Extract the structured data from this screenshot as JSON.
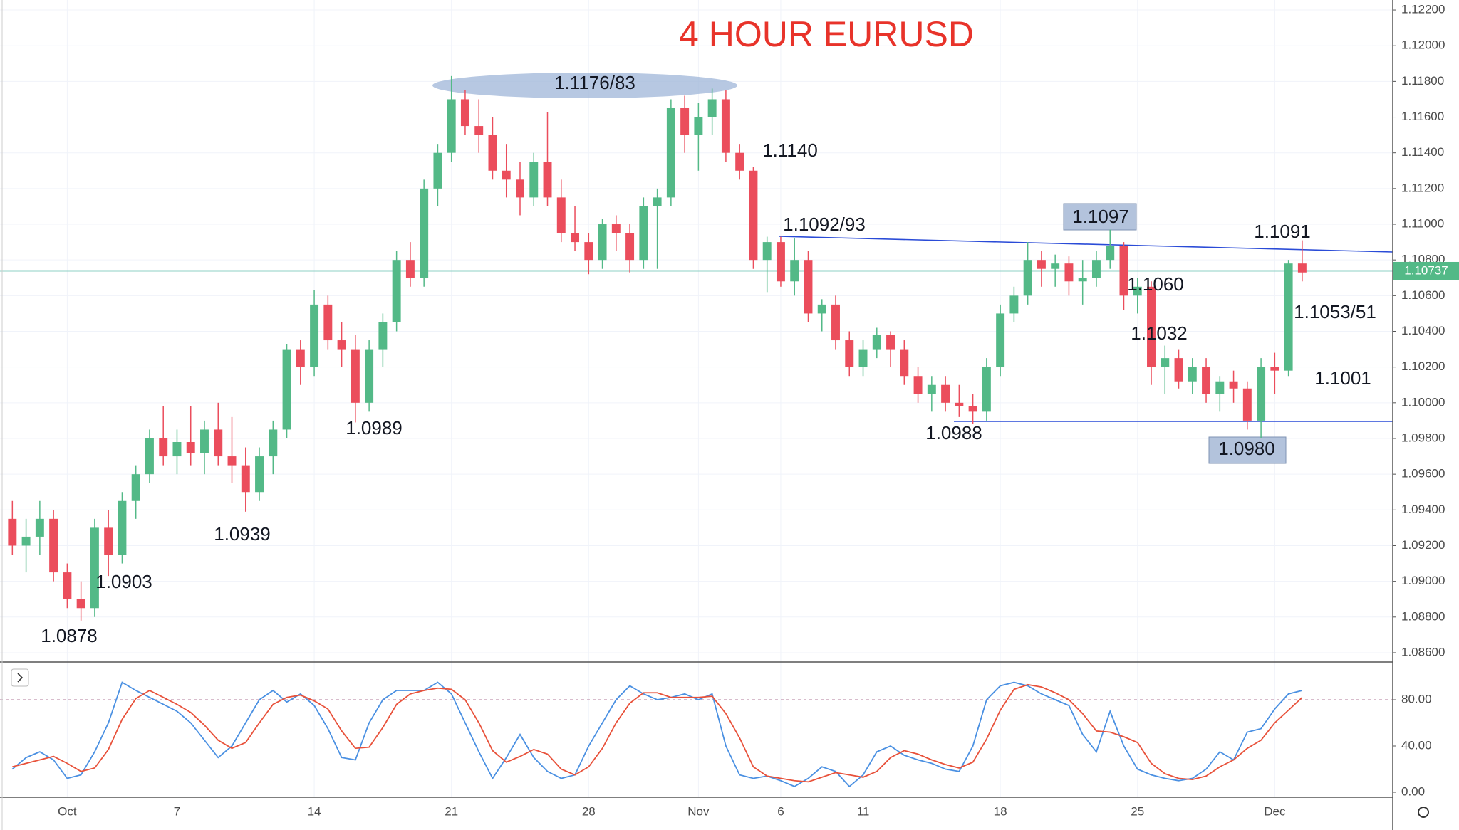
{
  "chart_data": [
    {
      "type": "candlestick",
      "title": "4 HOUR EURUSD",
      "up_color": "#53b987",
      "down_color": "#eb4d5c",
      "xlim": [
        -0.9,
        100.6
      ],
      "ylim": [
        1.08548,
        1.12256
      ],
      "yticks": [
        {
          "value": 1.122,
          "label": "1.12200"
        },
        {
          "value": 1.12,
          "label": "1.12000"
        },
        {
          "value": 1.118,
          "label": "1.11800"
        },
        {
          "value": 1.116,
          "label": "1.11600"
        },
        {
          "value": 1.114,
          "label": "1.11400"
        },
        {
          "value": 1.112,
          "label": "1.11200"
        },
        {
          "value": 1.11,
          "label": "1.11000"
        },
        {
          "value": 1.108,
          "label": "1.10800"
        },
        {
          "value": 1.106,
          "label": "1.10600"
        },
        {
          "value": 1.104,
          "label": "1.10400"
        },
        {
          "value": 1.102,
          "label": "1.10200"
        },
        {
          "value": 1.1,
          "label": "1.10000"
        },
        {
          "value": 1.098,
          "label": "1.09800"
        },
        {
          "value": 1.096,
          "label": "1.09600"
        },
        {
          "value": 1.094,
          "label": "1.09400"
        },
        {
          "value": 1.092,
          "label": "1.09200"
        },
        {
          "value": 1.09,
          "label": "1.09000"
        },
        {
          "value": 1.088,
          "label": "1.08800"
        },
        {
          "value": 1.086,
          "label": "1.08600"
        }
      ],
      "xticks": [
        {
          "value": 4,
          "label": "Oct"
        },
        {
          "value": 12,
          "label": "7"
        },
        {
          "value": 22,
          "label": "14"
        },
        {
          "value": 32,
          "label": "21"
        },
        {
          "value": 42,
          "label": "28"
        },
        {
          "value": 50,
          "label": "Nov"
        },
        {
          "value": 56,
          "label": "6"
        },
        {
          "value": 62,
          "label": "11"
        },
        {
          "value": 72,
          "label": "18"
        },
        {
          "value": 82,
          "label": "25"
        },
        {
          "value": 92,
          "label": "Dec"
        }
      ],
      "last_price": 1.10737,
      "annotations": [
        "1.1176/83",
        "1.1140",
        "1.1092/93",
        "1.1097",
        "1.1091",
        "1.1060",
        "1.1053/51",
        "1.1032",
        "1.1001",
        "1.0988",
        "1.0980",
        "1.0989",
        "1.0939",
        "1.0903",
        "1.0878"
      ],
      "ohlc": [
        [
          1.0935,
          1.0945,
          1.0915,
          1.092
        ],
        [
          1.092,
          1.0935,
          1.0905,
          1.0925
        ],
        [
          1.0925,
          1.0945,
          1.0915,
          1.0935
        ],
        [
          1.0935,
          1.094,
          1.09,
          1.0905
        ],
        [
          1.0905,
          1.091,
          1.0885,
          1.089
        ],
        [
          1.089,
          1.09,
          1.0878,
          1.0885
        ],
        [
          1.0885,
          1.0935,
          1.088,
          1.093
        ],
        [
          1.093,
          1.094,
          1.0903,
          1.0915
        ],
        [
          1.0915,
          1.095,
          1.091,
          1.0945
        ],
        [
          1.0945,
          1.0965,
          1.0935,
          1.096
        ],
        [
          1.096,
          1.0985,
          1.0955,
          1.098
        ],
        [
          1.098,
          1.0998,
          1.0965,
          1.097
        ],
        [
          1.097,
          1.0985,
          1.096,
          1.0978
        ],
        [
          1.0978,
          1.0998,
          1.0965,
          1.0972
        ],
        [
          1.0972,
          1.099,
          1.096,
          1.0985
        ],
        [
          1.0985,
          1.1,
          1.0965,
          1.097
        ],
        [
          1.097,
          1.0992,
          1.0955,
          1.0965
        ],
        [
          1.0965,
          1.0975,
          1.0939,
          1.095
        ],
        [
          1.095,
          1.0975,
          1.0945,
          1.097
        ],
        [
          1.097,
          1.099,
          1.096,
          1.0985
        ],
        [
          1.0985,
          1.1033,
          1.098,
          1.103
        ],
        [
          1.103,
          1.1035,
          1.101,
          1.102
        ],
        [
          1.102,
          1.1063,
          1.1015,
          1.1055
        ],
        [
          1.1055,
          1.106,
          1.103,
          1.1035
        ],
        [
          1.1035,
          1.1045,
          1.102,
          1.103
        ],
        [
          1.103,
          1.1038,
          1.0989,
          1.1
        ],
        [
          1.1,
          1.1035,
          1.0995,
          1.103
        ],
        [
          1.103,
          1.105,
          1.102,
          1.1045
        ],
        [
          1.1045,
          1.1085,
          1.104,
          1.108
        ],
        [
          1.108,
          1.109,
          1.1065,
          1.107
        ],
        [
          1.107,
          1.1125,
          1.1065,
          1.112
        ],
        [
          1.112,
          1.1145,
          1.111,
          1.114
        ],
        [
          1.114,
          1.1183,
          1.1135,
          1.117
        ],
        [
          1.117,
          1.1175,
          1.115,
          1.1155
        ],
        [
          1.1155,
          1.117,
          1.114,
          1.115
        ],
        [
          1.115,
          1.116,
          1.1125,
          1.113
        ],
        [
          1.113,
          1.1145,
          1.1115,
          1.1125
        ],
        [
          1.1125,
          1.1135,
          1.1105,
          1.1115
        ],
        [
          1.1115,
          1.114,
          1.111,
          1.1135
        ],
        [
          1.1135,
          1.1163,
          1.111,
          1.1115
        ],
        [
          1.1115,
          1.1125,
          1.109,
          1.1095
        ],
        [
          1.1095,
          1.111,
          1.1085,
          1.109
        ],
        [
          1.109,
          1.1095,
          1.1072,
          1.108
        ],
        [
          1.108,
          1.1103,
          1.1075,
          1.11
        ],
        [
          1.11,
          1.1105,
          1.1085,
          1.1095
        ],
        [
          1.1095,
          1.11,
          1.1073,
          1.108
        ],
        [
          1.108,
          1.1115,
          1.1075,
          1.111
        ],
        [
          1.111,
          1.112,
          1.1075,
          1.1115
        ],
        [
          1.1115,
          1.117,
          1.111,
          1.1165
        ],
        [
          1.1165,
          1.1172,
          1.114,
          1.115
        ],
        [
          1.115,
          1.1168,
          1.113,
          1.116
        ],
        [
          1.116,
          1.1176,
          1.115,
          1.117
        ],
        [
          1.117,
          1.1175,
          1.1135,
          1.114
        ],
        [
          1.114,
          1.1145,
          1.1125,
          1.113
        ],
        [
          1.113,
          1.1132,
          1.1075,
          1.108
        ],
        [
          1.108,
          1.1093,
          1.1062,
          1.109
        ],
        [
          1.109,
          1.1093,
          1.1065,
          1.1068
        ],
        [
          1.1068,
          1.1092,
          1.106,
          1.108
        ],
        [
          1.108,
          1.1085,
          1.1045,
          1.105
        ],
        [
          1.105,
          1.1058,
          1.104,
          1.1055
        ],
        [
          1.1055,
          1.106,
          1.103,
          1.1035
        ],
        [
          1.1035,
          1.104,
          1.1015,
          1.102
        ],
        [
          1.102,
          1.1035,
          1.1015,
          1.103
        ],
        [
          1.103,
          1.1042,
          1.1025,
          1.1038
        ],
        [
          1.1038,
          1.104,
          1.102,
          1.103
        ],
        [
          1.103,
          1.1035,
          1.101,
          1.1015
        ],
        [
          1.1015,
          1.102,
          1.1,
          1.1005
        ],
        [
          1.1005,
          1.1015,
          1.0995,
          1.101
        ],
        [
          1.101,
          1.1015,
          1.0995,
          1.1
        ],
        [
          1.1,
          1.101,
          1.0992,
          1.0998
        ],
        [
          1.0998,
          1.1005,
          1.0988,
          1.0995
        ],
        [
          1.0995,
          1.1025,
          1.099,
          1.102
        ],
        [
          1.102,
          1.1055,
          1.1015,
          1.105
        ],
        [
          1.105,
          1.1065,
          1.1045,
          1.106
        ],
        [
          1.106,
          1.109,
          1.1055,
          1.108
        ],
        [
          1.108,
          1.1085,
          1.1065,
          1.1075
        ],
        [
          1.1075,
          1.1083,
          1.1065,
          1.1078
        ],
        [
          1.1078,
          1.1082,
          1.106,
          1.1068
        ],
        [
          1.1068,
          1.108,
          1.1055,
          1.107
        ],
        [
          1.107,
          1.1085,
          1.1065,
          1.108
        ],
        [
          1.108,
          1.1097,
          1.1075,
          1.1088
        ],
        [
          1.1088,
          1.109,
          1.1052,
          1.106
        ],
        [
          1.106,
          1.107,
          1.105,
          1.1065
        ],
        [
          1.1065,
          1.1068,
          1.101,
          1.102
        ],
        [
          1.102,
          1.1032,
          1.1005,
          1.1025
        ],
        [
          1.1025,
          1.103,
          1.1008,
          1.1012
        ],
        [
          1.1012,
          1.1025,
          1.1005,
          1.102
        ],
        [
          1.102,
          1.1025,
          1.1,
          1.1005
        ],
        [
          1.1005,
          1.1015,
          1.0995,
          1.1012
        ],
        [
          1.1012,
          1.1018,
          1.1,
          1.1008
        ],
        [
          1.1008,
          1.1012,
          1.0985,
          1.099
        ],
        [
          1.099,
          1.1025,
          1.098,
          1.102
        ],
        [
          1.102,
          1.1028,
          1.1005,
          1.1018
        ],
        [
          1.1018,
          1.108,
          1.1015,
          1.1078
        ],
        [
          1.1078,
          1.1091,
          1.1068,
          1.1073
        ]
      ]
    },
    {
      "type": "line",
      "ylim": [
        -4.3,
        112.6
      ],
      "yticks": [
        {
          "value": 80,
          "label": "80.00"
        },
        {
          "value": 40,
          "label": "40.00"
        },
        {
          "value": 0,
          "label": "0.00"
        }
      ],
      "levels": [
        80,
        20
      ],
      "series": [
        {
          "color": "#4a90e2",
          "values": [
            20,
            30,
            35,
            28,
            12,
            15,
            35,
            60,
            95,
            88,
            82,
            76,
            70,
            60,
            45,
            30,
            40,
            60,
            80,
            88,
            78,
            85,
            75,
            55,
            30,
            28,
            60,
            80,
            88,
            88,
            88,
            95,
            85,
            60,
            35,
            12,
            30,
            50,
            30,
            18,
            12,
            15,
            40,
            60,
            80,
            92,
            85,
            80,
            82,
            85,
            80,
            85,
            40,
            15,
            12,
            14,
            10,
            5,
            12,
            22,
            18,
            5,
            15,
            35,
            40,
            32,
            28,
            25,
            20,
            18,
            40,
            80,
            92,
            95,
            92,
            85,
            80,
            75,
            50,
            35,
            70,
            40,
            20,
            15,
            12,
            10,
            12,
            20,
            35,
            28,
            52,
            55,
            72,
            85,
            88
          ]
        },
        {
          "color": "#e8513a",
          "values": [
            22,
            25,
            28,
            31,
            25,
            18,
            21,
            37,
            63,
            81,
            88,
            82,
            76,
            69,
            58,
            45,
            38,
            43,
            60,
            76,
            82,
            84,
            79,
            72,
            53,
            38,
            39,
            56,
            76,
            85,
            88,
            90,
            89,
            80,
            60,
            36,
            26,
            31,
            37,
            33,
            20,
            15,
            22,
            38,
            60,
            77,
            86,
            86,
            82,
            82,
            82,
            83,
            68,
            47,
            22,
            14,
            12,
            10,
            9,
            13,
            17,
            15,
            13,
            18,
            30,
            36,
            33,
            28,
            24,
            21,
            26,
            46,
            71,
            89,
            93,
            91,
            86,
            80,
            68,
            53,
            52,
            48,
            43,
            25,
            16,
            12,
            11,
            14,
            22,
            28,
            38,
            45,
            60,
            71,
            82
          ]
        }
      ]
    }
  ]
}
